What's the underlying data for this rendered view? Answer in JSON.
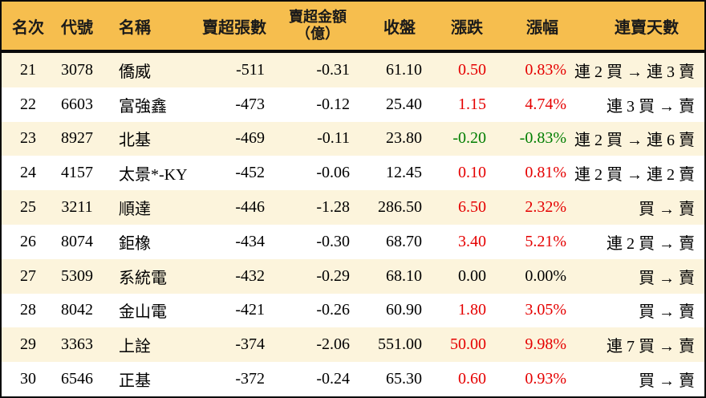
{
  "table": {
    "columns": [
      {
        "key": "rank",
        "label": "名次"
      },
      {
        "key": "code",
        "label": "代號"
      },
      {
        "key": "name",
        "label": "名稱"
      },
      {
        "key": "sell_volume",
        "label": "賣超張數"
      },
      {
        "key": "sell_amount",
        "label": "賣超金額",
        "label2": "（億）"
      },
      {
        "key": "close",
        "label": "收盤"
      },
      {
        "key": "change",
        "label": "漲跌"
      },
      {
        "key": "change_pct",
        "label": "漲幅"
      },
      {
        "key": "streak",
        "label": "連賣天數"
      }
    ],
    "rows": [
      {
        "rank": "21",
        "code": "3078",
        "name": "僑威",
        "sell_volume": "-511",
        "sell_amount": "-0.31",
        "close": "61.10",
        "change": "0.50",
        "change_pct": "0.83%",
        "change_color": "up",
        "streak": "連 2 買 → 連 3 賣"
      },
      {
        "rank": "22",
        "code": "6603",
        "name": "富強鑫",
        "sell_volume": "-473",
        "sell_amount": "-0.12",
        "close": "25.40",
        "change": "1.15",
        "change_pct": "4.74%",
        "change_color": "up",
        "streak": "連 3 買 → 賣"
      },
      {
        "rank": "23",
        "code": "8927",
        "name": "北基",
        "sell_volume": "-469",
        "sell_amount": "-0.11",
        "close": "23.80",
        "change": "-0.20",
        "change_pct": "-0.83%",
        "change_color": "down",
        "streak": "連 2 買 → 連 6 賣"
      },
      {
        "rank": "24",
        "code": "4157",
        "name": "太景*-KY",
        "sell_volume": "-452",
        "sell_amount": "-0.06",
        "close": "12.45",
        "change": "0.10",
        "change_pct": "0.81%",
        "change_color": "up",
        "streak": "連 2 買 → 連 2 賣"
      },
      {
        "rank": "25",
        "code": "3211",
        "name": "順達",
        "sell_volume": "-446",
        "sell_amount": "-1.28",
        "close": "286.50",
        "change": "6.50",
        "change_pct": "2.32%",
        "change_color": "up",
        "streak": "買 → 賣"
      },
      {
        "rank": "26",
        "code": "8074",
        "name": "鉅橡",
        "sell_volume": "-434",
        "sell_amount": "-0.30",
        "close": "68.70",
        "change": "3.40",
        "change_pct": "5.21%",
        "change_color": "up",
        "streak": "連 2 買 → 賣"
      },
      {
        "rank": "27",
        "code": "5309",
        "name": "系統電",
        "sell_volume": "-432",
        "sell_amount": "-0.29",
        "close": "68.10",
        "change": "0.00",
        "change_pct": "0.00%",
        "change_color": "flat",
        "streak": "買 → 賣"
      },
      {
        "rank": "28",
        "code": "8042",
        "name": "金山電",
        "sell_volume": "-421",
        "sell_amount": "-0.26",
        "close": "60.90",
        "change": "1.80",
        "change_pct": "3.05%",
        "change_color": "up",
        "streak": "買 → 賣"
      },
      {
        "rank": "29",
        "code": "3363",
        "name": "上詮",
        "sell_volume": "-374",
        "sell_amount": "-2.06",
        "close": "551.00",
        "change": "50.00",
        "change_pct": "9.98%",
        "change_color": "up",
        "streak": "連 7 買 → 賣"
      },
      {
        "rank": "30",
        "code": "6546",
        "name": "正基",
        "sell_volume": "-372",
        "sell_amount": "-0.24",
        "close": "65.30",
        "change": "0.60",
        "change_pct": "0.93%",
        "change_color": "up",
        "streak": "買 → 賣"
      }
    ]
  },
  "colors": {
    "header_bg": "#F6BE4E",
    "row_alt_bg": "#FCF4DC",
    "row_bg": "#FFFFFF",
    "up": "#E50000",
    "down": "#007E00",
    "flat": "#000000",
    "border": "#0A0A0A"
  }
}
